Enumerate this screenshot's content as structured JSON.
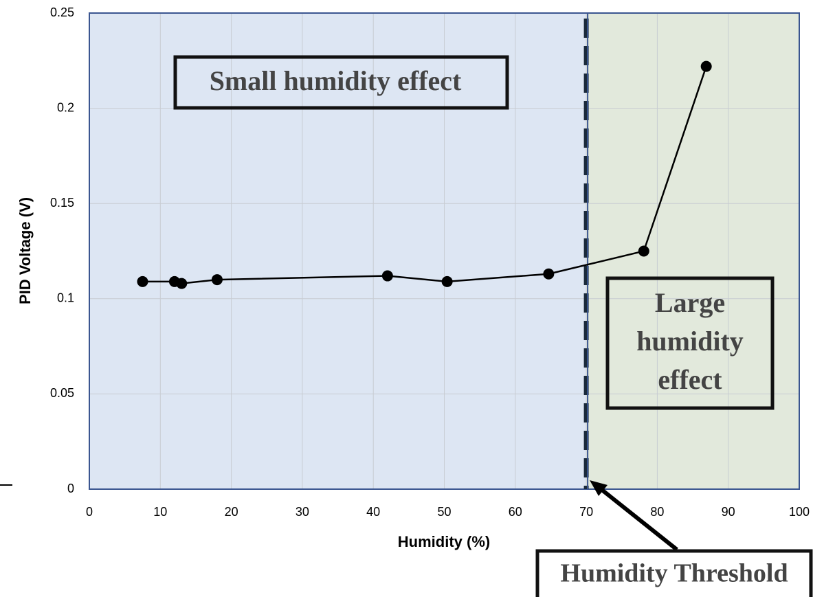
{
  "chart_data": {
    "type": "line",
    "x_label": "Humidity (%)",
    "y_label": "PID Voltage (V)",
    "series": [
      {
        "name": "PID voltage",
        "color": "#000000",
        "x": [
          7.5,
          12,
          13,
          18,
          42,
          50.4,
          64.7,
          78.1,
          86.9
        ],
        "values": [
          0.109,
          0.109,
          0.108,
          0.11,
          0.112,
          0.109,
          0.113,
          0.125,
          0.222
        ]
      }
    ],
    "xlim": [
      0,
      100
    ],
    "xticks": [
      0,
      10,
      20,
      30,
      40,
      50,
      60,
      70,
      80,
      90,
      100
    ],
    "ylim": [
      0,
      0.25
    ],
    "yticks": [
      0,
      0.05,
      0.1,
      0.15,
      0.2,
      0.25
    ],
    "grid": true,
    "threshold": 70,
    "region_colors": [
      "#dde6f3",
      "#e2e9dc"
    ],
    "annotations": {
      "small": "Small humidity effect",
      "large": [
        "Large",
        "humidity",
        "effect"
      ],
      "threshold": "Humidity Threshold"
    }
  }
}
